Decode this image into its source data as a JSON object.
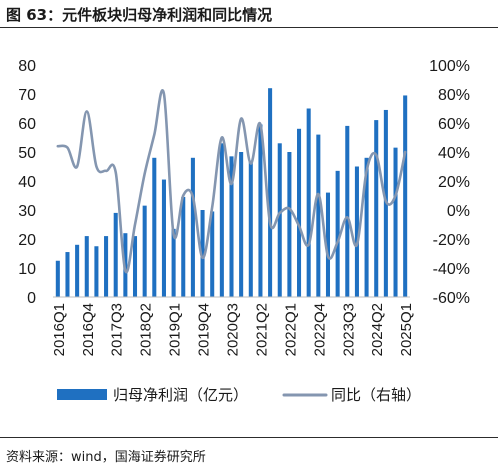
{
  "title": "图 63：元件板块归母净利润和同比情况",
  "source": "资料来源：wind，国海证券研究所",
  "colors": {
    "bar": "#1f70c1",
    "line": "#8496b0",
    "text": "#1a1a1a",
    "axis": "#bfbfbf"
  },
  "chart_data": {
    "type": "bar",
    "x": [
      "2016Q1",
      "2016Q2",
      "2016Q3",
      "2016Q4",
      "2017Q1",
      "2017Q2",
      "2017Q3",
      "2017Q4",
      "2018Q1",
      "2018Q2",
      "2018Q3",
      "2018Q4",
      "2019Q1",
      "2019Q2",
      "2019Q3",
      "2019Q4",
      "2020Q1",
      "2020Q2",
      "2020Q3",
      "2020Q4",
      "2021Q1",
      "2021Q2",
      "2021Q3",
      "2021Q4",
      "2022Q1",
      "2022Q2",
      "2022Q3",
      "2022Q4",
      "2023Q1",
      "2023Q2",
      "2023Q3",
      "2023Q4",
      "2024Q1",
      "2024Q2",
      "2024Q3",
      "2024Q4",
      "2025Q1"
    ],
    "x_tick_labels": [
      "2016Q1",
      "2016Q4",
      "2017Q3",
      "2018Q2",
      "2019Q1",
      "2019Q4",
      "2020Q3",
      "2021Q2",
      "2022Q1",
      "2022Q4",
      "2023Q3",
      "2024Q2",
      "2025Q1"
    ],
    "y_left_ticks": [
      "0",
      "10",
      "20",
      "30",
      "40",
      "50",
      "60",
      "70",
      "80"
    ],
    "y_right_ticks": [
      "-60%",
      "-40%",
      "-20%",
      "0%",
      "20%",
      "40%",
      "60%",
      "80%",
      "100%"
    ],
    "ylim_left": [
      0,
      80
    ],
    "ylim_right": [
      -60,
      100
    ],
    "series": [
      {
        "name": "归母净利润（亿元）",
        "type": "bar",
        "axis": "left",
        "values": [
          12.5,
          15.5,
          18,
          21,
          17.5,
          21,
          29,
          22,
          21,
          31.5,
          48,
          40.5,
          23.5,
          34.5,
          48,
          30,
          29.5,
          53,
          48.5,
          50,
          47,
          59.5,
          72,
          53,
          50,
          58,
          65,
          56,
          36,
          43.5,
          59,
          45,
          48,
          61,
          64.5,
          51.5,
          69.5
        ]
      },
      {
        "name": "同比（右轴）",
        "type": "line",
        "axis": "right",
        "values": [
          44,
          43,
          30,
          68,
          30,
          27,
          26,
          -42,
          -10,
          25,
          52,
          80,
          -17,
          10,
          9,
          -33,
          2,
          50,
          18,
          63,
          32,
          59,
          -9,
          -2,
          1,
          -11,
          -24,
          11,
          -32,
          -22,
          -5,
          -24,
          27,
          38,
          6,
          10,
          40
        ]
      }
    ],
    "legend": {
      "position": "bottom"
    }
  }
}
